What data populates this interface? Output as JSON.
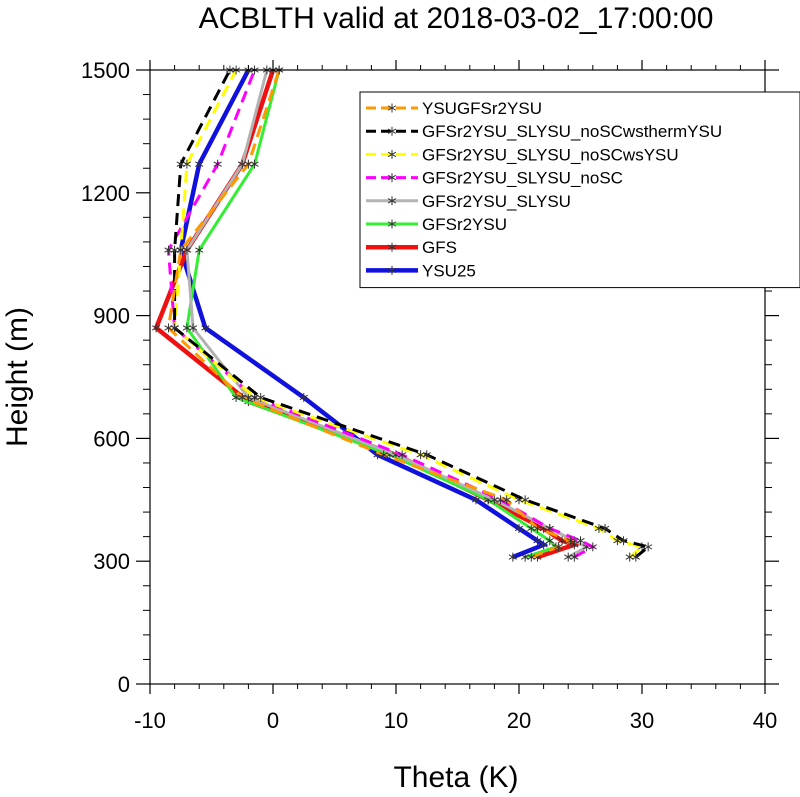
{
  "chart_data": {
    "type": "line",
    "title": "ACBLTH valid at 2018-03-02_17:00:00",
    "xlabel": "Theta (K)",
    "ylabel": "Height (m)",
    "xlim": [
      -10,
      40
    ],
    "ylim": [
      0,
      1500
    ],
    "x_ticks": [
      "-10",
      "0",
      "10",
      "20",
      "30",
      "40"
    ],
    "y_ticks": [
      "0",
      "300",
      "600",
      "900",
      "1200",
      "1500"
    ],
    "grid": false,
    "legend_position": "top-right",
    "series": [
      {
        "name": "YSUGFSr2YSU",
        "color": "#ff9900",
        "dash": "dashed",
        "marker": "asterisk",
        "x": [
          21.0,
          23.2,
          24.2,
          21.5,
          19.0,
          9.0,
          -2.5,
          -8.5,
          -7.5,
          -2.0,
          0.5
        ],
        "y": [
          310,
          335,
          350,
          380,
          450,
          560,
          700,
          870,
          1060,
          1270,
          1500
        ]
      },
      {
        "name": "GFSr2YSU_SLYSU_noSCwsthermYSU",
        "color": "#000000",
        "dash": "dashed",
        "marker": "asterisk",
        "x": [
          29.5,
          30.5,
          28.5,
          27.0,
          20.5,
          12.5,
          -1.0,
          -8.0,
          -8.0,
          -7.5,
          -3.5
        ],
        "y": [
          310,
          335,
          350,
          380,
          450,
          560,
          700,
          870,
          1060,
          1270,
          1500
        ]
      },
      {
        "name": "GFSr2YSU_SLYSU_noSCwsYSU",
        "color": "#ffff00",
        "dash": "dashed",
        "marker": "asterisk",
        "x": [
          29.0,
          30.0,
          28.0,
          26.5,
          20.0,
          12.0,
          -1.5,
          -8.0,
          -7.5,
          -7.0,
          -3.0
        ],
        "y": [
          310,
          335,
          350,
          380,
          450,
          560,
          700,
          870,
          1060,
          1270,
          1500
        ]
      },
      {
        "name": "GFSr2YSU_SLYSU_noSC",
        "color": "#ff00ff",
        "dash": "dashed",
        "marker": "asterisk",
        "x": [
          24.5,
          26.0,
          25.0,
          22.5,
          18.5,
          10.5,
          -1.5,
          -8.0,
          -8.5,
          -4.5,
          -1.5
        ],
        "y": [
          310,
          335,
          350,
          380,
          450,
          560,
          700,
          870,
          1060,
          1270,
          1500
        ]
      },
      {
        "name": "GFSr2YSU_SLYSU",
        "color": "#b3b3b3",
        "dash": "solid",
        "marker": "asterisk",
        "x": [
          24.0,
          25.5,
          24.5,
          22.5,
          18.0,
          10.0,
          -2.0,
          -6.5,
          -7.0,
          -2.5,
          -0.5
        ],
        "y": [
          310,
          335,
          350,
          380,
          450,
          560,
          700,
          870,
          1060,
          1270,
          1500
        ]
      },
      {
        "name": "GFSr2YSU",
        "color": "#33ee33",
        "dash": "solid",
        "marker": "asterisk",
        "x": [
          20.5,
          23.0,
          22.5,
          21.0,
          17.5,
          9.5,
          -3.0,
          -7.0,
          -6.0,
          -1.5,
          0.5
        ],
        "y": [
          310,
          335,
          350,
          380,
          450,
          560,
          700,
          870,
          1060,
          1270,
          1500
        ]
      },
      {
        "name": "GFS",
        "color": "#ee1111",
        "dash": "solid",
        "marker": "asterisk",
        "x": [
          21.5,
          24.5,
          23.5,
          22.0,
          17.5,
          10.0,
          -2.0,
          -9.5,
          -7.0,
          -2.5,
          0.0
        ],
        "y": [
          310,
          340,
          350,
          380,
          450,
          560,
          690,
          870,
          1060,
          1270,
          1500
        ]
      },
      {
        "name": "YSU25",
        "color": "#1111dd",
        "dash": "solid",
        "marker": "asterisk",
        "x": [
          19.5,
          22.0,
          21.5,
          20.0,
          16.5,
          8.5,
          2.5,
          -5.5,
          -7.5,
          -6.0,
          -2.0
        ],
        "y": [
          310,
          340,
          350,
          380,
          450,
          560,
          700,
          870,
          1060,
          1270,
          1500
        ]
      }
    ]
  }
}
